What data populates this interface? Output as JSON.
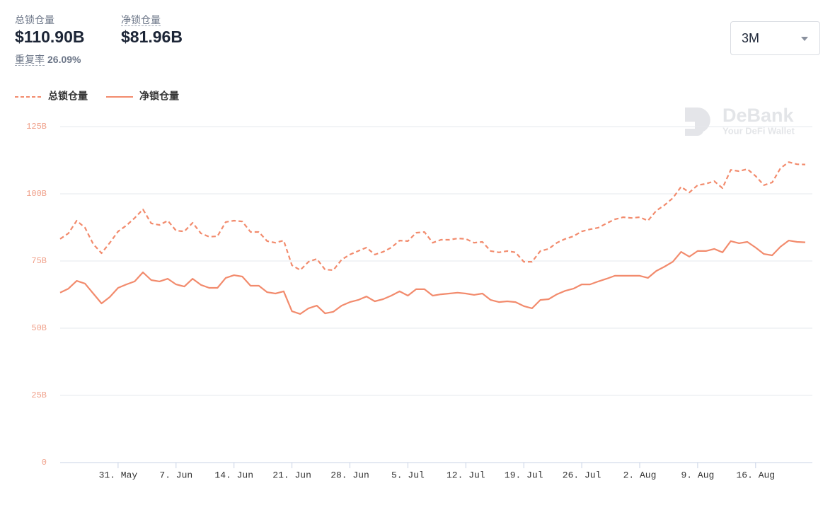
{
  "header": {
    "stats": [
      {
        "label": "总锁仓量",
        "value": "$110.90B"
      },
      {
        "label": "净锁仓量",
        "value": "$81.96B"
      }
    ],
    "ratio_label": "重复率",
    "ratio_value": "26.09%"
  },
  "dropdown": "3M",
  "watermark": {
    "brand": "DeBank",
    "tagline": "Your DeFi Wallet"
  },
  "chart_data": {
    "type": "line",
    "legend": "top-left",
    "grid": true,
    "categories": [
      null,
      null,
      null,
      null,
      null,
      null,
      null,
      "31. May",
      null,
      null,
      null,
      null,
      null,
      null,
      "7. Jun",
      null,
      null,
      null,
      null,
      null,
      null,
      "14. Jun",
      null,
      null,
      null,
      null,
      null,
      null,
      "21. Jun",
      null,
      null,
      null,
      null,
      null,
      null,
      "28. Jun",
      null,
      null,
      null,
      null,
      null,
      null,
      "5. Jul",
      null,
      null,
      null,
      null,
      null,
      null,
      "12. Jul",
      null,
      null,
      null,
      null,
      null,
      null,
      "19. Jul",
      null,
      null,
      null,
      null,
      null,
      null,
      "26. Jul",
      null,
      null,
      null,
      null,
      null,
      null,
      "2. Aug",
      null,
      null,
      null,
      null,
      null,
      null,
      "9. Aug",
      null,
      null,
      null,
      null,
      null,
      null,
      "16. Aug",
      null,
      null,
      null,
      null,
      null,
      null
    ],
    "series": [
      {
        "name": "总锁仓量",
        "color": "#f28b6d",
        "line_style": "dashed",
        "values": [
          83.2,
          85.3,
          90,
          87.4,
          81.3,
          77.9,
          81.8,
          86,
          88.2,
          91,
          94.2,
          89,
          88.4,
          90,
          86.3,
          86,
          89.2,
          85.3,
          84,
          84.2,
          89.5,
          90,
          89.7,
          85.8,
          85.8,
          82.4,
          81.8,
          82.6,
          73.4,
          71.6,
          74.7,
          75.8,
          71.8,
          71.6,
          75.5,
          77.4,
          78.7,
          80,
          77.4,
          78.4,
          80,
          82.6,
          82.4,
          85.5,
          85.8,
          81.8,
          82.9,
          82.9,
          83.4,
          83.2,
          81.8,
          82.1,
          78.7,
          78.2,
          78.7,
          78.2,
          74.7,
          74.7,
          78.7,
          79.5,
          81.8,
          83.2,
          84.2,
          86,
          86.8,
          87.4,
          89,
          90.5,
          91.3,
          91,
          91.3,
          90,
          93.7,
          95.8,
          98.4,
          102.6,
          100.5,
          103.2,
          103.7,
          104.7,
          102.1,
          108.9,
          108.4,
          109.2,
          106.6,
          103.2,
          104.2,
          109.5,
          111.8,
          111,
          110.9
        ]
      },
      {
        "name": "净锁仓量",
        "color": "#f28b6d",
        "line_style": "solid",
        "values": [
          63.2,
          64.7,
          67.6,
          66.6,
          62.9,
          59.2,
          61.6,
          65,
          66.3,
          67.4,
          70.8,
          67.9,
          67.4,
          68.4,
          66.3,
          65.5,
          68.4,
          66.1,
          65,
          65,
          68.7,
          69.7,
          69.2,
          65.8,
          65.8,
          63.4,
          62.9,
          63.7,
          56.3,
          55.3,
          57.4,
          58.4,
          55.5,
          56.1,
          58.4,
          59.7,
          60.5,
          61.8,
          60,
          60.8,
          62.1,
          63.7,
          62.1,
          64.5,
          64.5,
          62.1,
          62.6,
          62.9,
          63.2,
          62.9,
          62.4,
          62.9,
          60.5,
          59.7,
          60,
          59.7,
          58.2,
          57.4,
          60.5,
          60.8,
          62.6,
          63.9,
          64.7,
          66.3,
          66.3,
          67.4,
          68.4,
          69.5,
          69.5,
          69.5,
          69.5,
          68.7,
          71.3,
          72.9,
          74.7,
          78.4,
          76.6,
          78.7,
          78.7,
          79.5,
          78.2,
          82.4,
          81.6,
          82.1,
          80,
          77.6,
          77.1,
          80.3,
          82.6,
          82.1,
          81.96
        ]
      }
    ],
    "ylim": [
      0,
      125
    ],
    "yticks": [
      0,
      {
        "value": 25,
        "label": "25B"
      },
      {
        "value": 50,
        "label": "50B"
      },
      {
        "value": 75,
        "label": "75B"
      },
      {
        "value": 100,
        "label": "100B"
      },
      {
        "value": 125,
        "label": "125B"
      }
    ]
  }
}
